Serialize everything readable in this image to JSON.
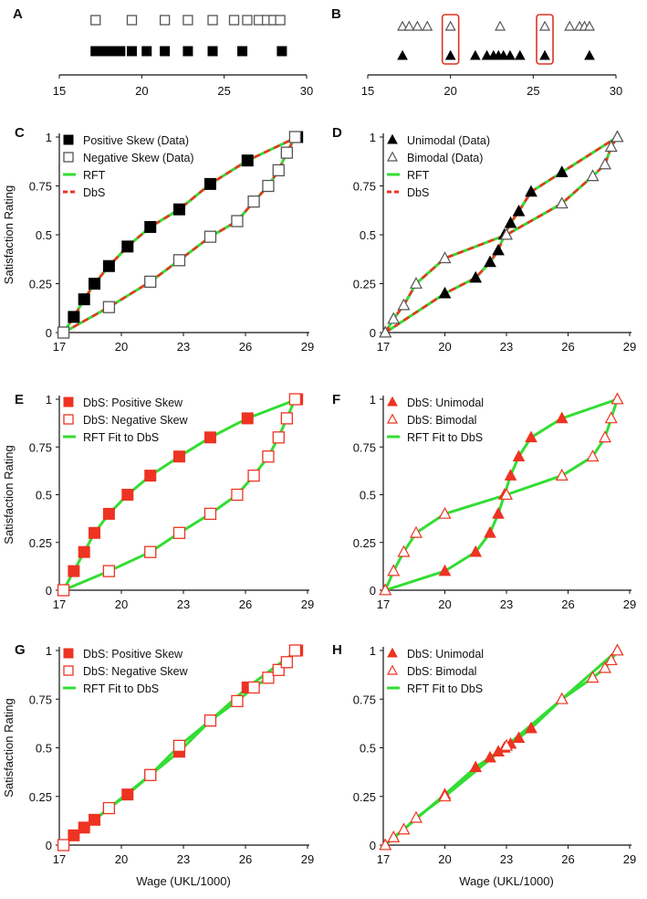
{
  "chart_data": [
    {
      "panel": "A",
      "type": "strip",
      "xlim": [
        15,
        30
      ],
      "xticks": [
        15,
        20,
        25,
        30
      ],
      "series": [
        {
          "name": "Negative Skew",
          "marker": "square-open",
          "x": [
            17.2,
            19.4,
            21.4,
            22.8,
            24.3,
            25.6,
            26.4,
            27.1,
            27.6,
            28.0,
            28.4
          ]
        },
        {
          "name": "Positive Skew",
          "marker": "square-filled",
          "x": [
            17.2,
            17.7,
            18.2,
            18.7,
            19.4,
            20.3,
            21.4,
            22.8,
            24.3,
            26.1,
            28.5
          ]
        }
      ]
    },
    {
      "panel": "B",
      "type": "strip",
      "xlim": [
        15,
        30
      ],
      "xticks": [
        15,
        20,
        25,
        30
      ],
      "highlight_x": [
        20.0,
        25.7
      ],
      "series": [
        {
          "name": "Bimodal",
          "marker": "triangle-open",
          "x": [
            17.1,
            17.5,
            18.0,
            18.6,
            20.0,
            23.0,
            25.7,
            27.2,
            27.8,
            28.1,
            28.4
          ]
        },
        {
          "name": "Unimodal",
          "marker": "triangle-filled",
          "x": [
            17.1,
            20.0,
            21.5,
            22.2,
            22.6,
            22.9,
            23.2,
            23.6,
            24.2,
            25.7,
            28.4
          ]
        }
      ]
    },
    {
      "panel": "C",
      "type": "scatter-line",
      "xlim": [
        17,
        29
      ],
      "ylim": [
        0,
        1
      ],
      "xticks": [
        17,
        20,
        23,
        26,
        29
      ],
      "yticks": [
        0,
        0.25,
        0.5,
        0.75,
        1
      ],
      "ylabel": "Satisfaction Rating",
      "xlabel": "",
      "legend": [
        {
          "label": "Positive Skew (Data)",
          "kind": "square-filled",
          "color": "#000000"
        },
        {
          "label": "Negative Skew (Data)",
          "kind": "square-open",
          "color": "#555555"
        },
        {
          "label": "RFT",
          "kind": "line-solid",
          "color": "#33dd33"
        },
        {
          "label": "DbS",
          "kind": "line-dashed",
          "color": "#ee3322"
        }
      ],
      "series": [
        {
          "name": "Positive Skew (Data)",
          "marker": "square-filled",
          "color": "#000000",
          "x": [
            17.2,
            17.7,
            18.2,
            18.7,
            19.4,
            20.3,
            21.4,
            22.8,
            24.3,
            26.1,
            28.5
          ],
          "y": [
            0,
            0.08,
            0.17,
            0.25,
            0.34,
            0.44,
            0.54,
            0.63,
            0.76,
            0.88,
            1.0
          ]
        },
        {
          "name": "Negative Skew (Data)",
          "marker": "square-open",
          "color": "#555555",
          "x": [
            17.2,
            19.4,
            21.4,
            22.8,
            24.3,
            25.6,
            26.4,
            27.1,
            27.6,
            28.0,
            28.4
          ],
          "y": [
            0,
            0.13,
            0.26,
            0.37,
            0.49,
            0.57,
            0.67,
            0.75,
            0.83,
            0.92,
            1.0
          ]
        }
      ],
      "fits": [
        {
          "name": "RFT",
          "style": "solid",
          "color": "#33dd33",
          "follows": [
            0,
            1
          ]
        },
        {
          "name": "DbS",
          "style": "dashed",
          "color": "#ee3322",
          "follows": [
            0,
            1
          ]
        }
      ]
    },
    {
      "panel": "D",
      "type": "scatter-line",
      "xlim": [
        17,
        29
      ],
      "ylim": [
        0,
        1
      ],
      "xticks": [
        17,
        20,
        23,
        26,
        29
      ],
      "yticks": [
        0,
        0.25,
        0.5,
        0.75,
        1
      ],
      "ylabel": "",
      "xlabel": "",
      "legend": [
        {
          "label": "Unimodal (Data)",
          "kind": "triangle-filled",
          "color": "#000000"
        },
        {
          "label": "Bimodal (Data)",
          "kind": "triangle-open",
          "color": "#555555"
        },
        {
          "label": "RFT",
          "kind": "line-solid",
          "color": "#33dd33"
        },
        {
          "label": "DbS",
          "kind": "line-dashed",
          "color": "#ee3322"
        }
      ],
      "series": [
        {
          "name": "Unimodal (Data)",
          "marker": "triangle-filled",
          "color": "#000000",
          "x": [
            17.1,
            20.0,
            21.5,
            22.2,
            22.6,
            22.9,
            23.2,
            23.6,
            24.2,
            25.7,
            28.4
          ],
          "y": [
            0,
            0.2,
            0.28,
            0.36,
            0.42,
            0.5,
            0.56,
            0.62,
            0.72,
            0.82,
            1.0
          ]
        },
        {
          "name": "Bimodal (Data)",
          "marker": "triangle-open",
          "color": "#555555",
          "x": [
            17.1,
            17.5,
            18.0,
            18.6,
            20.0,
            23.0,
            25.7,
            27.2,
            27.8,
            28.1,
            28.4
          ],
          "y": [
            0,
            0.07,
            0.14,
            0.25,
            0.38,
            0.5,
            0.66,
            0.8,
            0.86,
            0.95,
            1.0
          ]
        }
      ],
      "fits": [
        {
          "name": "RFT",
          "style": "solid",
          "color": "#33dd33",
          "follows": [
            0,
            1
          ]
        },
        {
          "name": "DbS",
          "style": "dashed",
          "color": "#ee3322",
          "follows": [
            0,
            1
          ]
        }
      ]
    },
    {
      "panel": "E",
      "type": "scatter-line",
      "xlim": [
        17,
        29
      ],
      "ylim": [
        0,
        1
      ],
      "xticks": [
        17,
        20,
        23,
        26,
        29
      ],
      "yticks": [
        0,
        0.25,
        0.5,
        0.75,
        1
      ],
      "ylabel": "Satisfaction Rating",
      "xlabel": "",
      "legend": [
        {
          "label": "DbS: Positive Skew",
          "kind": "square-filled",
          "color": "#ee3322"
        },
        {
          "label": "DbS: Negative Skew",
          "kind": "square-open",
          "color": "#ee3322"
        },
        {
          "label": "RFT Fit to DbS",
          "kind": "line-solid",
          "color": "#33dd33"
        }
      ],
      "series": [
        {
          "name": "DbS: Positive Skew",
          "marker": "square-filled",
          "color": "#ee3322",
          "x": [
            17.2,
            17.7,
            18.2,
            18.7,
            19.4,
            20.3,
            21.4,
            22.8,
            24.3,
            26.1,
            28.5
          ],
          "y": [
            0,
            0.1,
            0.2,
            0.3,
            0.4,
            0.5,
            0.6,
            0.7,
            0.8,
            0.9,
            1.0
          ]
        },
        {
          "name": "DbS: Negative Skew",
          "marker": "square-open",
          "color": "#ee3322",
          "x": [
            17.2,
            19.4,
            21.4,
            22.8,
            24.3,
            25.6,
            26.4,
            27.1,
            27.6,
            28.0,
            28.4
          ],
          "y": [
            0,
            0.1,
            0.2,
            0.3,
            0.4,
            0.5,
            0.6,
            0.7,
            0.8,
            0.9,
            1.0
          ]
        }
      ],
      "fits": [
        {
          "name": "RFT Fit to DbS",
          "style": "solid",
          "color": "#33dd33",
          "follows": [
            0,
            1
          ]
        }
      ]
    },
    {
      "panel": "F",
      "type": "scatter-line",
      "xlim": [
        17,
        29
      ],
      "ylim": [
        0,
        1
      ],
      "xticks": [
        17,
        20,
        23,
        26,
        29
      ],
      "yticks": [
        0,
        0.25,
        0.5,
        0.75,
        1
      ],
      "ylabel": "",
      "xlabel": "",
      "legend": [
        {
          "label": "DbS: Unimodal",
          "kind": "triangle-filled",
          "color": "#ee3322"
        },
        {
          "label": "DbS: Bimodal",
          "kind": "triangle-open",
          "color": "#ee3322"
        },
        {
          "label": "RFT Fit to DbS",
          "kind": "line-solid",
          "color": "#33dd33"
        }
      ],
      "series": [
        {
          "name": "DbS: Unimodal",
          "marker": "triangle-filled",
          "color": "#ee3322",
          "x": [
            17.1,
            20.0,
            21.5,
            22.2,
            22.6,
            22.9,
            23.2,
            23.6,
            24.2,
            25.7,
            28.4
          ],
          "y": [
            0,
            0.1,
            0.2,
            0.3,
            0.4,
            0.5,
            0.6,
            0.7,
            0.8,
            0.9,
            1.0
          ]
        },
        {
          "name": "DbS: Bimodal",
          "marker": "triangle-open",
          "color": "#ee3322",
          "x": [
            17.1,
            17.5,
            18.0,
            18.6,
            20.0,
            23.0,
            25.7,
            27.2,
            27.8,
            28.1,
            28.4
          ],
          "y": [
            0,
            0.1,
            0.2,
            0.3,
            0.4,
            0.5,
            0.6,
            0.7,
            0.8,
            0.9,
            1.0
          ]
        }
      ],
      "fits": [
        {
          "name": "RFT Fit to DbS",
          "style": "solid",
          "color": "#33dd33",
          "follows": [
            0,
            1
          ]
        }
      ]
    },
    {
      "panel": "G",
      "type": "scatter-line",
      "xlim": [
        17,
        29
      ],
      "ylim": [
        0,
        1
      ],
      "xticks": [
        17,
        20,
        23,
        26,
        29
      ],
      "yticks": [
        0,
        0.25,
        0.5,
        0.75,
        1
      ],
      "ylabel": "Satisfaction Rating",
      "xlabel": "Wage (UKL/1000)",
      "legend": [
        {
          "label": "DbS: Positive Skew",
          "kind": "square-filled",
          "color": "#ee3322"
        },
        {
          "label": "DbS: Negative Skew",
          "kind": "square-open",
          "color": "#ee3322"
        },
        {
          "label": "RFT Fit to DbS",
          "kind": "line-solid",
          "color": "#33dd33"
        }
      ],
      "series": [
        {
          "name": "DbS: Positive Skew",
          "marker": "square-filled",
          "color": "#ee3322",
          "x": [
            17.2,
            17.7,
            18.2,
            18.7,
            19.4,
            20.3,
            21.4,
            22.8,
            24.3,
            26.1,
            28.5
          ],
          "y": [
            0,
            0.05,
            0.09,
            0.13,
            0.19,
            0.26,
            0.36,
            0.48,
            0.64,
            0.81,
            1.0
          ]
        },
        {
          "name": "DbS: Negative Skew",
          "marker": "square-open",
          "color": "#ee3322",
          "x": [
            17.2,
            19.4,
            21.4,
            22.8,
            24.3,
            25.6,
            26.4,
            27.1,
            27.6,
            28.0,
            28.4
          ],
          "y": [
            0,
            0.19,
            0.36,
            0.51,
            0.64,
            0.74,
            0.81,
            0.86,
            0.9,
            0.94,
            1.0
          ]
        }
      ],
      "fits": [
        {
          "name": "RFT Fit to DbS",
          "style": "solid",
          "color": "#33dd33",
          "follows": [
            0,
            1
          ]
        }
      ]
    },
    {
      "panel": "H",
      "type": "scatter-line",
      "xlim": [
        17,
        29
      ],
      "ylim": [
        0,
        1
      ],
      "xticks": [
        17,
        20,
        23,
        26,
        29
      ],
      "yticks": [
        0,
        0.25,
        0.5,
        0.75,
        1
      ],
      "ylabel": "",
      "xlabel": "Wage (UKL/1000)",
      "legend": [
        {
          "label": "DbS: Unimodal",
          "kind": "triangle-filled",
          "color": "#ee3322"
        },
        {
          "label": "DbS: Bimodal",
          "kind": "triangle-open",
          "color": "#ee3322"
        },
        {
          "label": "RFT Fit to DbS",
          "kind": "line-solid",
          "color": "#33dd33"
        }
      ],
      "series": [
        {
          "name": "DbS: Unimodal",
          "marker": "triangle-filled",
          "color": "#ee3322",
          "x": [
            17.1,
            20.0,
            21.5,
            22.2,
            22.6,
            22.9,
            23.2,
            23.6,
            24.2,
            25.7,
            28.4
          ],
          "y": [
            0,
            0.26,
            0.4,
            0.45,
            0.48,
            0.5,
            0.52,
            0.55,
            0.6,
            0.75,
            1.0
          ]
        },
        {
          "name": "DbS: Bimodal",
          "marker": "triangle-open",
          "color": "#ee3322",
          "x": [
            17.1,
            17.5,
            18.0,
            18.6,
            20.0,
            23.0,
            25.7,
            27.2,
            27.8,
            28.1,
            28.4
          ],
          "y": [
            0,
            0.04,
            0.08,
            0.14,
            0.25,
            0.51,
            0.75,
            0.86,
            0.91,
            0.95,
            1.0
          ]
        }
      ],
      "fits": [
        {
          "name": "RFT Fit to DbS",
          "style": "solid",
          "color": "#33dd33",
          "follows": [
            0,
            1
          ]
        }
      ]
    }
  ]
}
